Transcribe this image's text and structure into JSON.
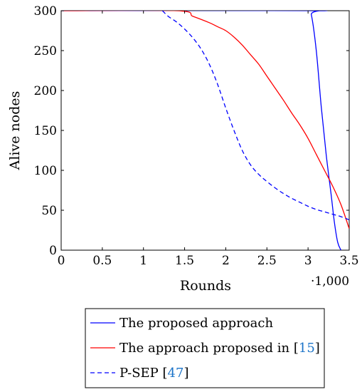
{
  "chart_data": {
    "type": "line",
    "title": "",
    "xlabel": "Rounds",
    "ylabel": "Alive nodes",
    "x_multiplier": "·1,000",
    "xlim": [
      0,
      3.5
    ],
    "ylim": [
      0,
      300
    ],
    "xticks": [
      "0",
      "0.5",
      "1",
      "1.5",
      "2",
      "2.5",
      "3",
      "3.5"
    ],
    "yticks": [
      "0",
      "50",
      "100",
      "150",
      "200",
      "250",
      "300"
    ],
    "grid": false,
    "legend_position": "bottom",
    "series": [
      {
        "name": "The proposed approach",
        "color": "#0000ff",
        "dash": "solid",
        "x": [
          0,
          3.0,
          3.04,
          3.1,
          3.16,
          3.22,
          3.28,
          3.32,
          3.36,
          3.4
        ],
        "y": [
          300,
          300,
          295,
          250,
          180,
          120,
          70,
          35,
          10,
          0
        ]
      },
      {
        "name": "The approach proposed in [15]",
        "name_parts": [
          "The approach proposed in [",
          "15",
          "]"
        ],
        "color": "#ff0000",
        "dash": "solid",
        "x": [
          0,
          1.4,
          1.6,
          1.8,
          1.9,
          2.0,
          2.1,
          2.2,
          2.3,
          2.4,
          2.5,
          2.6,
          2.7,
          2.8,
          2.9,
          3.0,
          3.1,
          3.2,
          3.3,
          3.4,
          3.5
        ],
        "y": [
          300,
          300,
          293,
          285,
          280,
          275,
          267,
          257,
          245,
          233,
          218,
          203,
          188,
          172,
          157,
          140,
          120,
          100,
          80,
          57,
          27
        ]
      },
      {
        "name": "P-SEP [47]",
        "name_parts": [
          "P-SEP [",
          "47",
          "]"
        ],
        "color": "#0000ff",
        "dash": "dashed",
        "x": [
          1.23,
          1.3,
          1.4,
          1.5,
          1.6,
          1.7,
          1.8,
          1.9,
          2.0,
          2.1,
          2.2,
          2.3,
          2.4,
          2.5,
          2.6,
          2.7,
          2.8,
          2.9,
          3.0,
          3.1,
          3.2,
          3.3,
          3.4,
          3.5
        ],
        "y": [
          300,
          293,
          286,
          277,
          266,
          252,
          233,
          208,
          178,
          150,
          125,
          107,
          95,
          86,
          78,
          71,
          65,
          60,
          55,
          51,
          48,
          45,
          42,
          38
        ]
      }
    ]
  }
}
